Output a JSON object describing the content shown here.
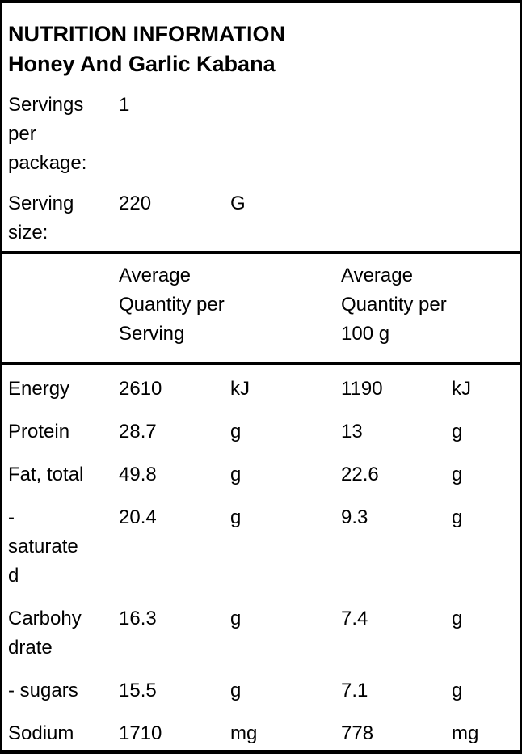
{
  "colors": {
    "text": "#000000",
    "border": "#000000",
    "background": "#ffffff"
  },
  "header": {
    "title": "NUTRITION INFORMATION",
    "subtitle": "Honey And Garlic Kabana"
  },
  "package_info": {
    "servings_label": "Servings\nper\npackage:",
    "servings_value": "1",
    "serving_size_label": "Serving\nsize:",
    "serving_size_value": "220",
    "serving_size_unit": "G"
  },
  "nutrition_table": {
    "column_headers": {
      "per_serving": "Average\nQuantity per\nServing",
      "per_100g": "Average\nQuantity per\n100 g"
    },
    "rows": [
      {
        "label": "Energy",
        "qty_per_serving": "2610",
        "unit_per_serving": "kJ",
        "qty_per_100g": "1190",
        "unit_per_100g": "kJ"
      },
      {
        "label": "Protein",
        "qty_per_serving": "28.7",
        "unit_per_serving": "g",
        "qty_per_100g": "13",
        "unit_per_100g": "g"
      },
      {
        "label": "Fat, total",
        "qty_per_serving": "49.8",
        "unit_per_serving": "g",
        "qty_per_100g": "22.6",
        "unit_per_100g": "g"
      },
      {
        "label": "-\nsaturate\nd",
        "qty_per_serving": "20.4",
        "unit_per_serving": "g",
        "qty_per_100g": "9.3",
        "unit_per_100g": "g"
      },
      {
        "label": "Carbohy\ndrate",
        "qty_per_serving": "16.3",
        "unit_per_serving": "g",
        "qty_per_100g": "7.4",
        "unit_per_100g": "g"
      },
      {
        "label": "- sugars",
        "qty_per_serving": "15.5",
        "unit_per_serving": "g",
        "qty_per_100g": "7.1",
        "unit_per_100g": "g"
      },
      {
        "label": "Sodium",
        "qty_per_serving": "1710",
        "unit_per_serving": "mg",
        "qty_per_100g": "778",
        "unit_per_100g": "mg"
      }
    ]
  }
}
